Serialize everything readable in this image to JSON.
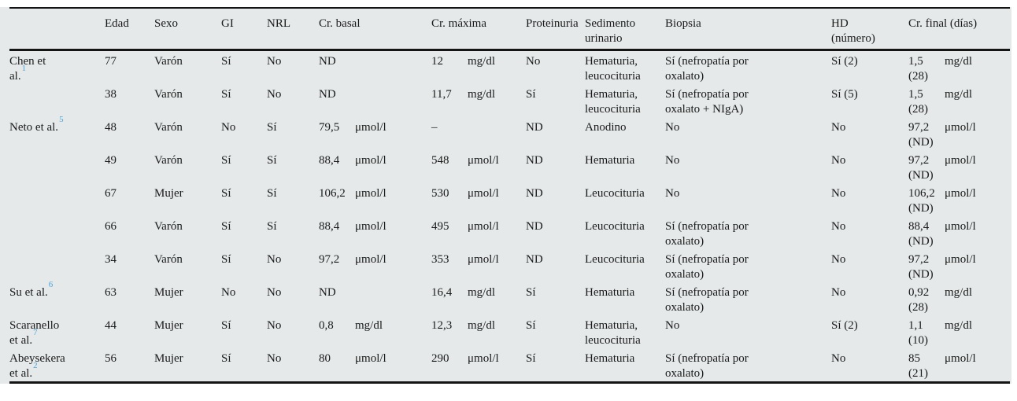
{
  "colors": {
    "panel_background": "#e5e9ea",
    "text": "#1a1a1a",
    "rule": "#141414",
    "citation_link": "#4da3d7"
  },
  "table": {
    "columns": [
      {
        "label": ""
      },
      {
        "label": "Edad"
      },
      {
        "label": "Sexo"
      },
      {
        "label": "GI"
      },
      {
        "label": "NRL"
      },
      {
        "label": "Cr. basal"
      },
      {
        "label": "Cr. máxima"
      },
      {
        "label": "Proteinuria"
      },
      {
        "label": "Sedimento urinario",
        "lines": [
          "Sedimento",
          "urinario"
        ]
      },
      {
        "label": "Biopsia"
      },
      {
        "label": "HD (número)",
        "lines": [
          "HD",
          "(número)"
        ]
      },
      {
        "label": "Cr. final (días)"
      }
    ],
    "rows": [
      {
        "cells": [
          {
            "lines": [
              "Chen et",
              "al."
            ],
            "ref": "1"
          },
          "77",
          "Varón",
          "Sí",
          "No",
          "ND",
          {
            "v": "12",
            "u": "mg/dl"
          },
          "No",
          {
            "lines": [
              "Hematuria,",
              "leucocituria"
            ]
          },
          {
            "lines": [
              "Sí (nefropatía por",
              "oxalato)"
            ]
          },
          "Sí (2)",
          {
            "v": "1,5",
            "u": "mg/dl",
            "sub": "(28)"
          }
        ]
      },
      {
        "cells": [
          null,
          "38",
          "Varón",
          "Sí",
          "No",
          "ND",
          {
            "v": "11,7",
            "u": "mg/dl"
          },
          "Sí",
          {
            "lines": [
              "Hematuria,",
              "leucocituria"
            ]
          },
          {
            "lines": [
              "Sí (nefropatía por",
              "oxalato   +   NIgA)"
            ]
          },
          "Sí (5)",
          {
            "v": "1,5",
            "u": "mg/dl",
            "sub": "(28)"
          }
        ]
      },
      {
        "cells": [
          {
            "lines": [
              "Neto et al."
            ],
            "ref": "5"
          },
          "48",
          "Varón",
          "No",
          "Sí",
          {
            "v": "79,5",
            "u": "μmol/l"
          },
          "–",
          "ND",
          "Anodino",
          "No",
          "No",
          {
            "v": "97,2",
            "u": "μmol/l",
            "sub": "(ND)"
          }
        ]
      },
      {
        "cells": [
          null,
          "49",
          "Varón",
          "Sí",
          "Sí",
          {
            "v": "88,4",
            "u": "μmol/l"
          },
          {
            "v": "548",
            "u": "μmol/l"
          },
          "ND",
          "Hematuria",
          "No",
          "No",
          {
            "v": "97,2",
            "u": "μmol/l",
            "sub": "(ND)"
          }
        ]
      },
      {
        "cells": [
          null,
          "67",
          "Mujer",
          "Sí",
          "Sí",
          {
            "v": "106,2",
            "u": "μmol/l"
          },
          {
            "v": "530",
            "u": "μmol/l"
          },
          "ND",
          "Leucocituria",
          "No",
          "No",
          {
            "v": "106,2",
            "u": "μmol/l",
            "sub": "(ND)"
          }
        ]
      },
      {
        "cells": [
          null,
          "66",
          "Varón",
          "Sí",
          "Sí",
          {
            "v": "88,4",
            "u": "μmol/l"
          },
          {
            "v": "495",
            "u": "μmol/l"
          },
          "ND",
          "Leucocituria",
          {
            "lines": [
              "Sí (nefropatía por",
              "oxalato)"
            ]
          },
          "No",
          {
            "v": "88,4",
            "u": "μmol/l",
            "sub": "(ND)"
          }
        ]
      },
      {
        "cells": [
          null,
          "34",
          "Varón",
          "Sí",
          "No",
          {
            "v": "97,2",
            "u": "μmol/l"
          },
          {
            "v": "353",
            "u": "μmol/l"
          },
          "ND",
          "Leucocituria",
          {
            "lines": [
              "Sí (nefropatía por",
              "oxalato)"
            ]
          },
          "No",
          {
            "v": "97,2",
            "u": "μmol/l",
            "sub": "(ND)"
          }
        ]
      },
      {
        "cells": [
          {
            "lines": [
              "Su et al."
            ],
            "ref": "6"
          },
          "63",
          "Mujer",
          "No",
          "No",
          "ND",
          {
            "v": "16,4",
            "u": "mg/dl"
          },
          "Sí",
          "Hematuria",
          {
            "lines": [
              "Sí (nefropatía por",
              "oxalato)"
            ]
          },
          "No",
          {
            "v": "0,92",
            "u": "mg/dl",
            "sub": "(28)"
          }
        ]
      },
      {
        "cells": [
          {
            "lines": [
              "Scaranello",
              "et al."
            ],
            "ref": "7"
          },
          "44",
          "Mujer",
          "Sí",
          "No",
          {
            "v": "0,8",
            "u": "mg/dl"
          },
          {
            "v": "12,3",
            "u": "mg/dl"
          },
          "Sí",
          {
            "lines": [
              "Hematuria,",
              "leucocituria"
            ]
          },
          "No",
          "Sí (2)",
          {
            "v": "1,1",
            "u": "mg/dl",
            "sub": "(10)"
          }
        ]
      },
      {
        "cells": [
          {
            "lines": [
              "Abeysekera",
              "et al."
            ],
            "ref": "2"
          },
          "56",
          "Mujer",
          "Sí",
          "No",
          {
            "v": "80",
            "u": "μmol/l"
          },
          {
            "v": "290",
            "u": "μmol/l"
          },
          "Sí",
          "Hematuria",
          {
            "lines": [
              "Sí (nefropatía por",
              "oxalato)"
            ]
          },
          "No",
          {
            "v": "85",
            "u": "μmol/l",
            "sub": "(21)"
          }
        ]
      }
    ]
  }
}
